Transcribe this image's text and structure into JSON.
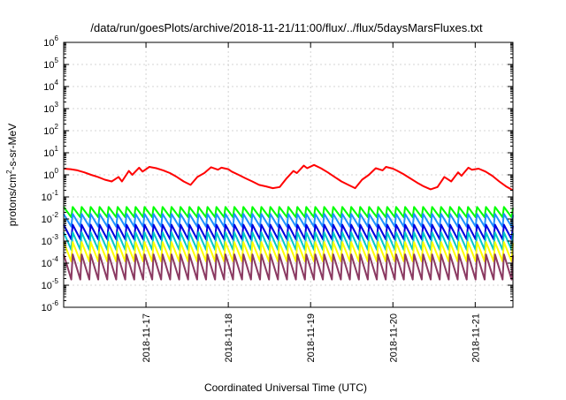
{
  "chart_data": {
    "type": "line",
    "title": "/data/run/goesPlots/archive/2018-11-21/11:00/flux/../flux/5daysMarsFluxes.txt",
    "xlabel": "Coordinated Universal Time (UTC)",
    "ylabel": "protons/cm2-s-sr-MeV",
    "ylabel_parts": {
      "before": "protons/cm",
      "sup": "2",
      "after": "-s-sr-MeV"
    },
    "yscale": "log",
    "ylim": [
      1e-06,
      1000000.0
    ],
    "xlim": [
      "2018-11-16 00:00",
      "2018-11-21 11:00"
    ],
    "grid": true,
    "x_ticks": [
      "2018-11-17",
      "2018-11-18",
      "2018-11-19",
      "2018-11-20",
      "2018-11-21"
    ],
    "y_ticks": [
      {
        "base": "10",
        "exp": "-6",
        "value": 1e-06
      },
      {
        "base": "10",
        "exp": "-5",
        "value": 1e-05
      },
      {
        "base": "10",
        "exp": "-4",
        "value": 0.0001
      },
      {
        "base": "10",
        "exp": "-3",
        "value": 0.001
      },
      {
        "base": "10",
        "exp": "-2",
        "value": 0.01
      },
      {
        "base": "10",
        "exp": "-1",
        "value": 0.1
      },
      {
        "base": "10",
        "exp": "0",
        "value": 1
      },
      {
        "base": "10",
        "exp": "1",
        "value": 10
      },
      {
        "base": "10",
        "exp": "2",
        "value": 100
      },
      {
        "base": "10",
        "exp": "3",
        "value": 1000
      },
      {
        "base": "10",
        "exp": "4",
        "value": 10000
      },
      {
        "base": "10",
        "exp": "5",
        "value": 100000
      },
      {
        "base": "10",
        "exp": "6",
        "value": 1000000
      }
    ],
    "series": [
      {
        "color": "#ff0000",
        "x": [
          "2018-11-16 00:00",
          "2018-11-16 02:00",
          "2018-11-16 04:00",
          "2018-11-16 06:00",
          "2018-11-16 08:00",
          "2018-11-16 10:00",
          "2018-11-16 12:00",
          "2018-11-16 14:00",
          "2018-11-16 16:00",
          "2018-11-16 17:00",
          "2018-11-16 19:00",
          "2018-11-16 20:00",
          "2018-11-16 22:00",
          "2018-11-16 23:00",
          "2018-11-17 01:00",
          "2018-11-17 03:00",
          "2018-11-17 05:00",
          "2018-11-17 07:00",
          "2018-11-17 09:00",
          "2018-11-17 11:00",
          "2018-11-17 13:00",
          "2018-11-17 15:00",
          "2018-11-17 17:00",
          "2018-11-17 19:00",
          "2018-11-17 21:00",
          "2018-11-17 22:00",
          "2018-11-18 00:00",
          "2018-11-18 01:00",
          "2018-11-18 03:00",
          "2018-11-18 05:00",
          "2018-11-18 07:00",
          "2018-11-18 09:00",
          "2018-11-18 11:00",
          "2018-11-18 13:00",
          "2018-11-18 15:00",
          "2018-11-18 17:00",
          "2018-11-18 19:00",
          "2018-11-18 20:00",
          "2018-11-18 22:00",
          "2018-11-18 23:00",
          "2018-11-19 01:00",
          "2018-11-19 03:00",
          "2018-11-19 05:00",
          "2018-11-19 07:00",
          "2018-11-19 09:00",
          "2018-11-19 11:00",
          "2018-11-19 13:00",
          "2018-11-19 15:00",
          "2018-11-19 17:00",
          "2018-11-19 19:00",
          "2018-11-19 21:00",
          "2018-11-19 22:00",
          "2018-11-20 00:00",
          "2018-11-20 01:00",
          "2018-11-20 03:00",
          "2018-11-20 05:00",
          "2018-11-20 07:00",
          "2018-11-20 09:00",
          "2018-11-20 11:00",
          "2018-11-20 13:00",
          "2018-11-20 15:00",
          "2018-11-20 17:00",
          "2018-11-20 19:00",
          "2018-11-20 20:00",
          "2018-11-20 22:00",
          "2018-11-20 23:00",
          "2018-11-21 01:00",
          "2018-11-21 03:00",
          "2018-11-21 05:00",
          "2018-11-21 07:00",
          "2018-11-21 09:00",
          "2018-11-21 11:00"
        ],
        "values": [
          1.9,
          1.8,
          1.6,
          1.3,
          1.0,
          0.8,
          0.6,
          0.5,
          0.8,
          0.5,
          1.5,
          1.0,
          2.1,
          1.4,
          2.3,
          2.0,
          1.6,
          1.2,
          0.8,
          0.5,
          0.35,
          0.8,
          1.2,
          2.2,
          1.7,
          2.1,
          1.8,
          1.4,
          1.0,
          0.7,
          0.5,
          0.35,
          0.3,
          0.25,
          0.28,
          0.7,
          1.5,
          1.2,
          2.6,
          2.0,
          2.8,
          2.0,
          1.3,
          0.8,
          0.5,
          0.35,
          0.25,
          0.6,
          1.0,
          2.0,
          1.6,
          2.3,
          1.9,
          1.6,
          1.1,
          0.7,
          0.45,
          0.3,
          0.22,
          0.28,
          0.8,
          0.5,
          1.3,
          0.9,
          2.1,
          1.7,
          1.9,
          1.4,
          0.9,
          0.5,
          0.3,
          0.2
        ]
      },
      {
        "color": "#00ff00",
        "shape": "sawtooth",
        "teeth": 50,
        "low": 0.012,
        "high": 0.035,
        "x_start": "2018-11-16 00:00",
        "x_end": "2018-11-21 11:00"
      },
      {
        "color": "#1e90ff",
        "shape": "sawtooth",
        "teeth": 50,
        "low": 0.0045,
        "high": 0.017,
        "x_start": "2018-11-16 00:00",
        "x_end": "2018-11-21 11:00"
      },
      {
        "color": "#0000e0",
        "shape": "sawtooth",
        "teeth": 50,
        "low": 0.0012,
        "high": 0.0055,
        "x_start": "2018-11-16 00:00",
        "x_end": "2018-11-21 11:00"
      },
      {
        "color": "#00c8c8",
        "shape": "sawtooth",
        "teeth": 50,
        "low": 0.0004,
        "high": 0.0025,
        "x_start": "2018-11-16 00:00",
        "x_end": "2018-11-21 11:00"
      },
      {
        "color": "#ffff00",
        "shape": "sawtooth",
        "teeth": 50,
        "low": 0.00012,
        "high": 0.0009,
        "x_start": "2018-11-16 00:00",
        "x_end": "2018-11-21 11:00"
      },
      {
        "color": "#8b3a62",
        "shape": "sawtooth",
        "teeth": 50,
        "low": 1.8e-05,
        "high": 0.00025,
        "x_start": "2018-11-16 00:00",
        "x_end": "2018-11-21 11:00"
      }
    ]
  }
}
